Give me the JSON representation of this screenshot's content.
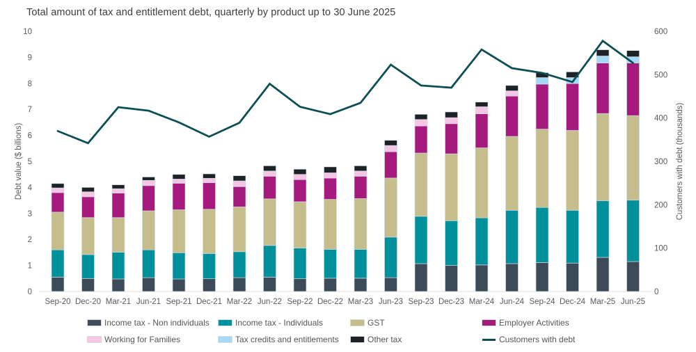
{
  "title": "Total amount of tax and entitlement debt, quarterly by product up to 30 June 2025",
  "left_axis": {
    "label": "Debt value ($ billions)",
    "min": 0,
    "max": 10,
    "step": 1
  },
  "right_axis": {
    "label": "Customers with debt (thousands)",
    "min": 0,
    "max": 600,
    "step": 100
  },
  "colors": {
    "background": "#ffffff",
    "baseline": "#dcdcdc",
    "tick_text": "#5a5a5a",
    "bar_outline": "#cfdde2"
  },
  "legend": {
    "items": [
      {
        "label": "Income tax - Non individuals",
        "color": "#3d4b59",
        "type": "box"
      },
      {
        "label": "Income tax - Individuals",
        "color": "#00909b",
        "type": "box"
      },
      {
        "label": "GST",
        "color": "#c5bd8b",
        "type": "box"
      },
      {
        "label": "Employer Activities",
        "color": "#a61a7e",
        "type": "box"
      },
      {
        "label": "Working for Families",
        "color": "#f6c5e5",
        "type": "box"
      },
      {
        "label": "Tax credits and entitlements",
        "color": "#a5d9f5",
        "type": "box"
      },
      {
        "label": "Other tax",
        "color": "#1c2226",
        "type": "box"
      },
      {
        "label": "Customers with debt",
        "color": "#0b4f55",
        "type": "line"
      }
    ]
  },
  "chart_data": {
    "type": "bar",
    "subtype": "stacked-columns-with-line-overlay",
    "title": "Total amount of tax and entitlement debt, quarterly by product up to 30 June 2025",
    "xlabel": "",
    "ylabel_left": "Debt value ($ billions)",
    "ylabel_right": "Customers with debt (thousands)",
    "ylim_left": [
      0,
      10
    ],
    "ylim_right": [
      0,
      600
    ],
    "grid": false,
    "legend_position": "bottom",
    "categories": [
      "Sep-20",
      "Dec-20",
      "Mar-21",
      "Jun-21",
      "Sep-21",
      "Dec-21",
      "Mar-22",
      "Jun-22",
      "Sep-22",
      "Dec-22",
      "Mar-23",
      "Jun-23",
      "Sep-23",
      "Dec-23",
      "Mar-24",
      "Jun-24",
      "Sep-24",
      "Dec-24",
      "Mar-25",
      "Jun-25"
    ],
    "series": [
      {
        "name": "Income tax - Non individuals",
        "color": "#3d4b59",
        "values": [
          0.55,
          0.5,
          0.48,
          0.53,
          0.48,
          0.49,
          0.53,
          0.55,
          0.49,
          0.51,
          0.51,
          0.53,
          1.07,
          1.0,
          1.02,
          1.07,
          1.11,
          1.09,
          1.31,
          1.15
        ]
      },
      {
        "name": "Income tax - Individuals",
        "color": "#00909b",
        "values": [
          1.05,
          0.92,
          1.03,
          1.07,
          1.01,
          0.97,
          1.0,
          1.22,
          1.18,
          1.11,
          1.11,
          1.56,
          1.82,
          1.72,
          1.81,
          2.05,
          2.12,
          2.03,
          2.18,
          2.36
        ]
      },
      {
        "name": "GST",
        "color": "#c5bd8b",
        "values": [
          1.45,
          1.42,
          1.33,
          1.5,
          1.65,
          1.7,
          1.72,
          1.79,
          1.78,
          1.92,
          1.95,
          2.27,
          2.43,
          2.57,
          2.69,
          2.84,
          3.01,
          3.07,
          3.35,
          3.25
        ]
      },
      {
        "name": "Employer Activities",
        "color": "#a61a7e",
        "values": [
          0.75,
          0.8,
          0.94,
          0.97,
          1.02,
          1.02,
          0.78,
          0.87,
          0.85,
          0.82,
          0.86,
          1.01,
          1.04,
          1.16,
          1.31,
          1.55,
          1.73,
          1.8,
          1.94,
          2.02
        ]
      },
      {
        "name": "Working for Families",
        "color": "#f6c5e5",
        "values": [
          0.18,
          0.19,
          0.17,
          0.2,
          0.16,
          0.17,
          0.22,
          0.2,
          0.2,
          0.2,
          0.2,
          0.24,
          0.25,
          0.23,
          0.27,
          0.2,
          0,
          0,
          0,
          0
        ]
      },
      {
        "name": "Tax credits and entitlements",
        "color": "#a5d9f5",
        "values": [
          0,
          0,
          0,
          0,
          0,
          0,
          0,
          0,
          0,
          0,
          0,
          0,
          0,
          0,
          0,
          0,
          0.25,
          0.23,
          0.27,
          0.24
        ]
      },
      {
        "name": "Other tax",
        "color": "#1c2226",
        "values": [
          0.17,
          0.17,
          0.15,
          0.13,
          0.18,
          0.17,
          0.2,
          0.2,
          0.2,
          0.23,
          0.2,
          0.2,
          0.2,
          0.22,
          0.18,
          0.21,
          0.19,
          0.22,
          0.24,
          0.24
        ]
      }
    ],
    "line_series": {
      "name": "Customers with debt",
      "axis": "right",
      "color": "#0b4f55",
      "values": [
        370,
        342,
        425,
        417,
        390,
        357,
        389,
        479,
        426,
        409,
        435,
        523,
        475,
        470,
        558,
        515,
        504,
        483,
        578,
        527
      ]
    }
  }
}
